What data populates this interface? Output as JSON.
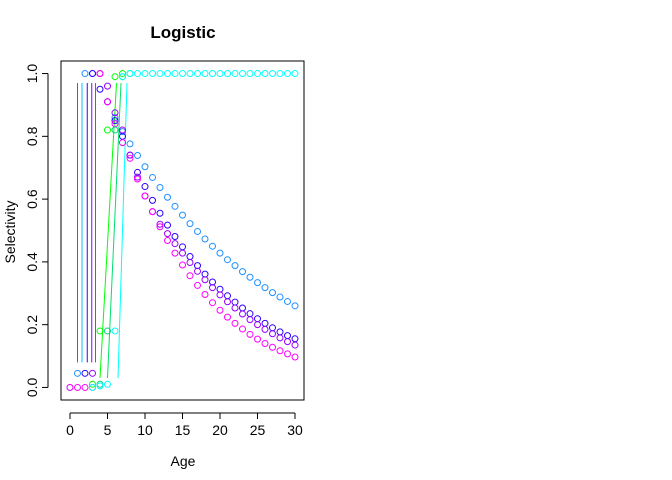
{
  "chart_data": {
    "type": "line",
    "title": "Logistic",
    "xlabel": "Age",
    "ylabel": "Selectivity",
    "xlim": [
      -1.2,
      31.2
    ],
    "ylim": [
      -0.04,
      1.04
    ],
    "xticks": [
      0,
      5,
      10,
      15,
      20,
      25,
      30
    ],
    "yticks": [
      0.0,
      0.2,
      0.4,
      0.6,
      0.8,
      1.0
    ],
    "xtick_labels": [
      "0",
      "5",
      "10",
      "15",
      "20",
      "25",
      "30"
    ],
    "ytick_labels": [
      "0.0",
      "0.2",
      "0.4",
      "0.6",
      "0.8",
      "1.0"
    ],
    "grid": false,
    "legend": "none",
    "line_segments": [
      {
        "color": "#1E6FFF",
        "x": [
          1,
          1
        ],
        "y": [
          0.08,
          0.97
        ]
      },
      {
        "color": "#00C2FF",
        "x": [
          1.6,
          1.6
        ],
        "y": [
          0.08,
          0.97
        ]
      },
      {
        "color": "#3D00FF",
        "x": [
          2.3,
          2.3
        ],
        "y": [
          0.08,
          0.97
        ]
      },
      {
        "color": "#8A00FF",
        "x": [
          2.9,
          2.9
        ],
        "y": [
          0.08,
          0.97
        ]
      },
      {
        "color": "#FF00FF",
        "x": [
          3.4,
          3.4
        ],
        "y": [
          0.08,
          0.97
        ]
      },
      {
        "color": "#00FF00",
        "x": [
          4.0,
          6.2
        ],
        "y": [
          0.03,
          0.97
        ]
      },
      {
        "color": "#00E070",
        "x": [
          5.0,
          6.8
        ],
        "y": [
          0.03,
          0.97
        ]
      },
      {
        "color": "#00FFFF",
        "x": [
          6.4,
          7.6
        ],
        "y": [
          0.03,
          0.97
        ]
      }
    ],
    "series": [
      {
        "name": "",
        "color": "#1E90FF",
        "x": [
          0,
          1,
          2,
          3,
          4,
          5,
          6,
          7,
          8,
          9,
          10,
          11,
          12,
          13,
          14,
          15,
          16,
          17,
          18,
          19,
          20,
          21,
          22,
          23,
          24,
          25,
          26,
          27,
          28,
          29,
          30
        ],
        "y": [
          0.0,
          0.045,
          1.0,
          1.0,
          1.0,
          0.91,
          0.86,
          0.815,
          0.776,
          0.739,
          0.703,
          0.669,
          0.637,
          0.606,
          0.577,
          0.549,
          0.522,
          0.497,
          0.473,
          0.45,
          0.428,
          0.407,
          0.388,
          0.369,
          0.351,
          0.334,
          0.318,
          0.302,
          0.288,
          0.274,
          0.26
        ]
      },
      {
        "name": "",
        "color": "#2B00FF",
        "x": [
          2,
          3,
          4,
          5,
          6,
          7,
          8,
          9,
          10,
          11,
          12,
          13,
          14,
          15,
          16,
          17,
          18,
          19,
          20,
          21,
          22,
          23,
          24,
          25,
          26,
          27,
          28,
          29,
          30
        ],
        "y": [
          0.045,
          1.0,
          0.95,
          0.91,
          0.85,
          0.8,
          0.74,
          0.685,
          0.64,
          0.596,
          0.555,
          0.517,
          0.481,
          0.448,
          0.417,
          0.388,
          0.361,
          0.336,
          0.313,
          0.292,
          0.272,
          0.253,
          0.235,
          0.219,
          0.204,
          0.19,
          0.177,
          0.165,
          0.155
        ]
      },
      {
        "name": "",
        "color": "#9900FF",
        "x": [
          3,
          4,
          5,
          6,
          7,
          8,
          9,
          10,
          11,
          12,
          13,
          14,
          15,
          16,
          17,
          18,
          19,
          20,
          21,
          22,
          23,
          24,
          25,
          26,
          27,
          28,
          29,
          30
        ],
        "y": [
          0.045,
          1.0,
          0.96,
          0.875,
          0.82,
          0.74,
          0.67,
          0.61,
          0.56,
          0.52,
          0.49,
          0.458,
          0.428,
          0.398,
          0.37,
          0.343,
          0.318,
          0.295,
          0.273,
          0.253,
          0.234,
          0.216,
          0.2,
          0.185,
          0.171,
          0.158,
          0.146,
          0.135
        ]
      },
      {
        "name": "",
        "color": "#FF00FF",
        "x": [
          0,
          1,
          2,
          3,
          4,
          5,
          6,
          7,
          8,
          9,
          10,
          11,
          12,
          13,
          14,
          15,
          16,
          17,
          18,
          19,
          20,
          21,
          22,
          23,
          24,
          25,
          26,
          27,
          28,
          29,
          30
        ],
        "y": [
          0.0,
          0.0,
          0.0,
          0.0,
          1.0,
          0.91,
          0.84,
          0.78,
          0.73,
          0.664,
          0.61,
          0.56,
          0.512,
          0.468,
          0.428,
          0.39,
          0.356,
          0.325,
          0.296,
          0.27,
          0.246,
          0.224,
          0.204,
          0.186,
          0.169,
          0.154,
          0.14,
          0.128,
          0.117,
          0.107,
          0.097
        ]
      },
      {
        "name": "",
        "color": "#00FF00",
        "x": [
          3,
          4,
          5,
          6,
          7
        ],
        "y": [
          0.01,
          0.18,
          0.82,
          0.99,
          1.0
        ]
      },
      {
        "name": "",
        "color": "#00D080",
        "x": [
          4,
          5,
          6,
          7,
          8
        ],
        "y": [
          0.01,
          0.18,
          0.82,
          0.99,
          1.0
        ]
      },
      {
        "name": "",
        "color": "#00FFFF",
        "x": [
          3,
          4,
          5,
          6,
          7,
          8,
          9,
          10,
          11,
          12,
          13,
          14,
          15,
          16,
          17,
          18,
          19,
          20,
          21,
          22,
          23,
          24,
          25,
          26,
          27,
          28,
          29,
          30
        ],
        "y": [
          0.0,
          0.005,
          0.01,
          0.18,
          0.99,
          1.0,
          1.0,
          1.0,
          1.0,
          1.0,
          1.0,
          1.0,
          1.0,
          1.0,
          1.0,
          1.0,
          1.0,
          1.0,
          1.0,
          1.0,
          1.0,
          1.0,
          1.0,
          1.0,
          1.0,
          1.0,
          1.0,
          1.0
        ]
      }
    ]
  }
}
